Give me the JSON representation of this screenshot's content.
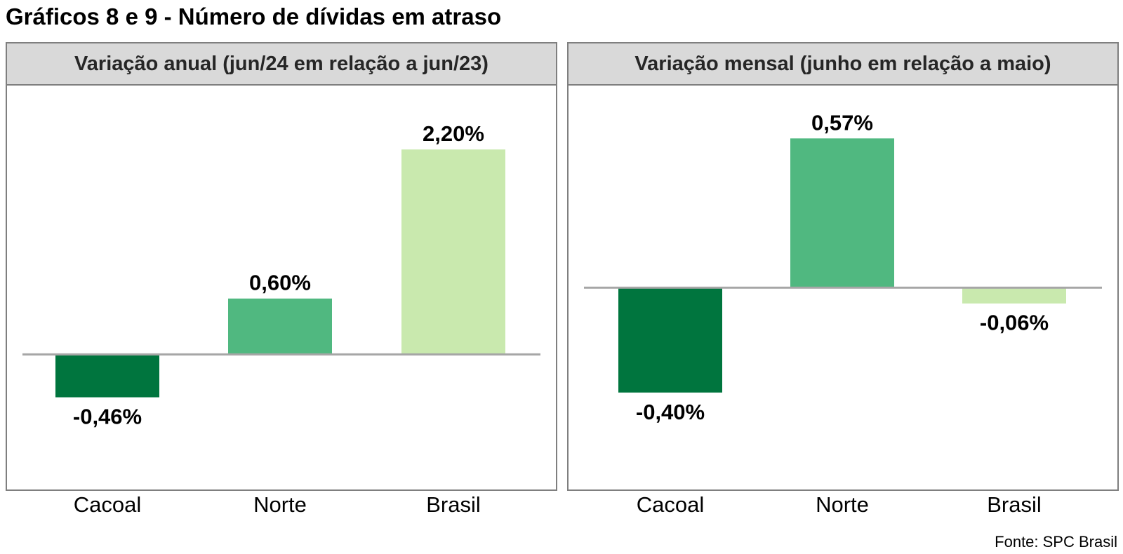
{
  "title": "Gráficos 8 e 9 - Número de dívidas em atraso",
  "source": "Fonte: SPC Brasil",
  "chart_data": [
    {
      "type": "bar",
      "title": "Variação anual (jun/24 em relação a jun/23)",
      "categories": [
        "Cacoal",
        "Norte",
        "Brasil"
      ],
      "values": [
        -0.46,
        0.6,
        2.2
      ],
      "value_labels": [
        "-0,46%",
        "0,60%",
        "2,20%"
      ],
      "colors": [
        "#00753e",
        "#50b880",
        "#c9e9ae"
      ],
      "ylim": [
        -0.9,
        2.6
      ],
      "grid": false,
      "legend": "none"
    },
    {
      "type": "bar",
      "title": "Variação mensal (junho em relação a maio)",
      "categories": [
        "Cacoal",
        "Norte",
        "Brasil"
      ],
      "values": [
        -0.4,
        0.57,
        -0.06
      ],
      "value_labels": [
        "-0,40%",
        "0,57%",
        "-0,06%"
      ],
      "colors": [
        "#00753e",
        "#50b880",
        "#c9e9ae"
      ],
      "ylim": [
        -0.58,
        0.67
      ],
      "grid": false,
      "legend": "none"
    }
  ]
}
